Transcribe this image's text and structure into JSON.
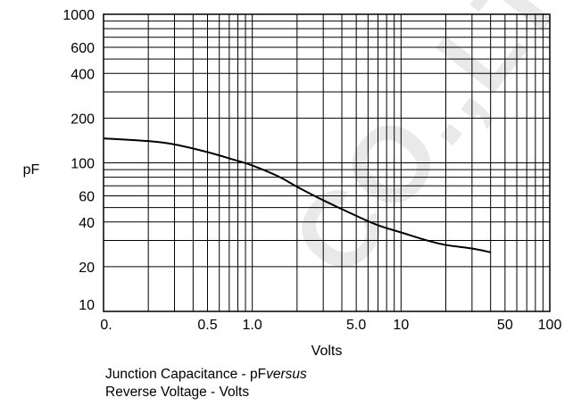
{
  "watermark_text": "CO.,LT",
  "caption": {
    "line1_text": "Junction Capacitance - pF",
    "line1_italic": "versus",
    "line2": "Reverse Voltage - Volts"
  },
  "chart_data": {
    "type": "line",
    "title": "",
    "xlabel": "Volts",
    "ylabel": "pF",
    "x_scale": "log",
    "y_scale": "log",
    "xlim": [
      0.1,
      100
    ],
    "ylim": [
      10,
      1000
    ],
    "grid": true,
    "x_ticks": [
      {
        "value": 0.1,
        "label": "0."
      },
      {
        "value": 0.5,
        "label": "0.5"
      },
      {
        "value": 1,
        "label": "1.0"
      },
      {
        "value": 5,
        "label": "5.0"
      },
      {
        "value": 10,
        "label": "10"
      },
      {
        "value": 50,
        "label": "50"
      },
      {
        "value": 100,
        "label": "100"
      }
    ],
    "y_ticks": [
      {
        "value": 10,
        "label": "10"
      },
      {
        "value": 20,
        "label": "20"
      },
      {
        "value": 40,
        "label": "40"
      },
      {
        "value": 60,
        "label": "60"
      },
      {
        "value": 100,
        "label": "100"
      },
      {
        "value": 200,
        "label": "200"
      },
      {
        "value": 400,
        "label": "400"
      },
      {
        "value": 600,
        "label": "600"
      },
      {
        "value": 1000,
        "label": "1000"
      }
    ],
    "series": [
      {
        "color": "#000000",
        "x": [
          0.1,
          0.2,
          0.3,
          0.5,
          0.8,
          1.0,
          1.5,
          2.0,
          3.0,
          5.0,
          7.0,
          10,
          15,
          20,
          30,
          40
        ],
        "y": [
          146,
          140,
          133,
          118,
          103,
          96,
          81,
          69,
          56,
          44,
          38,
          34,
          30,
          28,
          26.5,
          25
        ]
      }
    ]
  }
}
